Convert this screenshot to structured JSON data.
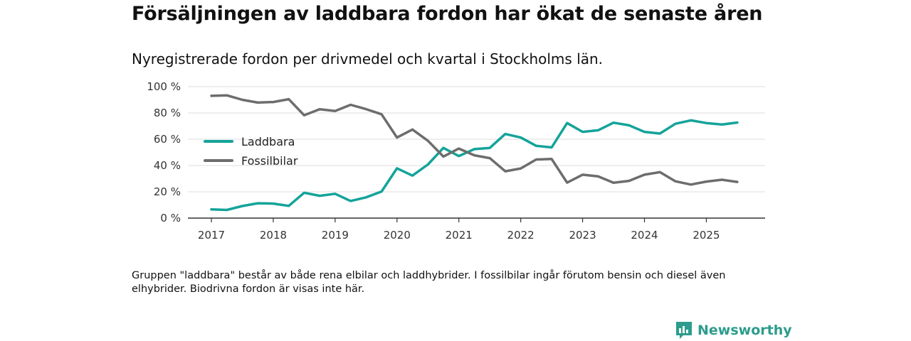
{
  "title": "Försäljningen av laddbara fordon har ökat de senaste åren",
  "subtitle": "Nyregistrerade fordon per drivmedel och kvartal i Stockholms län.",
  "note": "Gruppen \"laddbara\" består av både rena elbilar och laddhybrider. I fossilbilar ingår förutom bensin och diesel även elhybrider. Biodrivna fordon är visas inte här.",
  "brand": "Newsworthy",
  "colors": {
    "laddbara": "#14a39a",
    "fossil": "#6d6d6d",
    "grid": "#dddddd",
    "axis": "#333333",
    "brand": "#2d9c8c"
  },
  "chart_data": {
    "type": "line",
    "x_start": 2017.0,
    "x_step": 0.25,
    "xlim": [
      2016.62,
      2025.95
    ],
    "ylim": [
      0,
      100
    ],
    "yticks": [
      0,
      20,
      40,
      60,
      80,
      100
    ],
    "ytick_labels": [
      "0 %",
      "20 %",
      "40 %",
      "60 %",
      "80 %",
      "100 %"
    ],
    "xticks": [
      2017,
      2018,
      2019,
      2020,
      2021,
      2022,
      2023,
      2024,
      2025
    ],
    "xtick_labels": [
      "2017",
      "2018",
      "2019",
      "2020",
      "2021",
      "2022",
      "2023",
      "2024",
      "2025"
    ],
    "legend_position": "left",
    "series": [
      {
        "name": "Laddbara",
        "color": "#14a39a",
        "values": [
          6.6,
          6.2,
          9.2,
          11.3,
          11.0,
          9.3,
          19.3,
          17.0,
          18.5,
          13.0,
          15.8,
          20.2,
          37.9,
          32.3,
          40.8,
          53.4,
          47.2,
          52.5,
          53.4,
          64.0,
          61.3,
          55.0,
          53.8,
          72.3,
          65.6,
          66.8,
          72.6,
          70.6,
          65.6,
          64.3,
          71.8,
          74.4,
          72.3,
          71.2,
          72.7
        ]
      },
      {
        "name": "Fossilbilar",
        "color": "#6d6d6d",
        "values": [
          93.0,
          93.4,
          90.0,
          87.9,
          88.3,
          90.5,
          78.2,
          82.8,
          81.5,
          86.2,
          82.9,
          79.0,
          61.3,
          67.4,
          58.8,
          46.8,
          52.9,
          47.8,
          45.6,
          35.6,
          37.8,
          44.6,
          45.0,
          27.0,
          33.0,
          31.8,
          26.9,
          28.3,
          33.0,
          35.0,
          28.0,
          25.5,
          27.8,
          29.2,
          27.5
        ]
      }
    ]
  }
}
